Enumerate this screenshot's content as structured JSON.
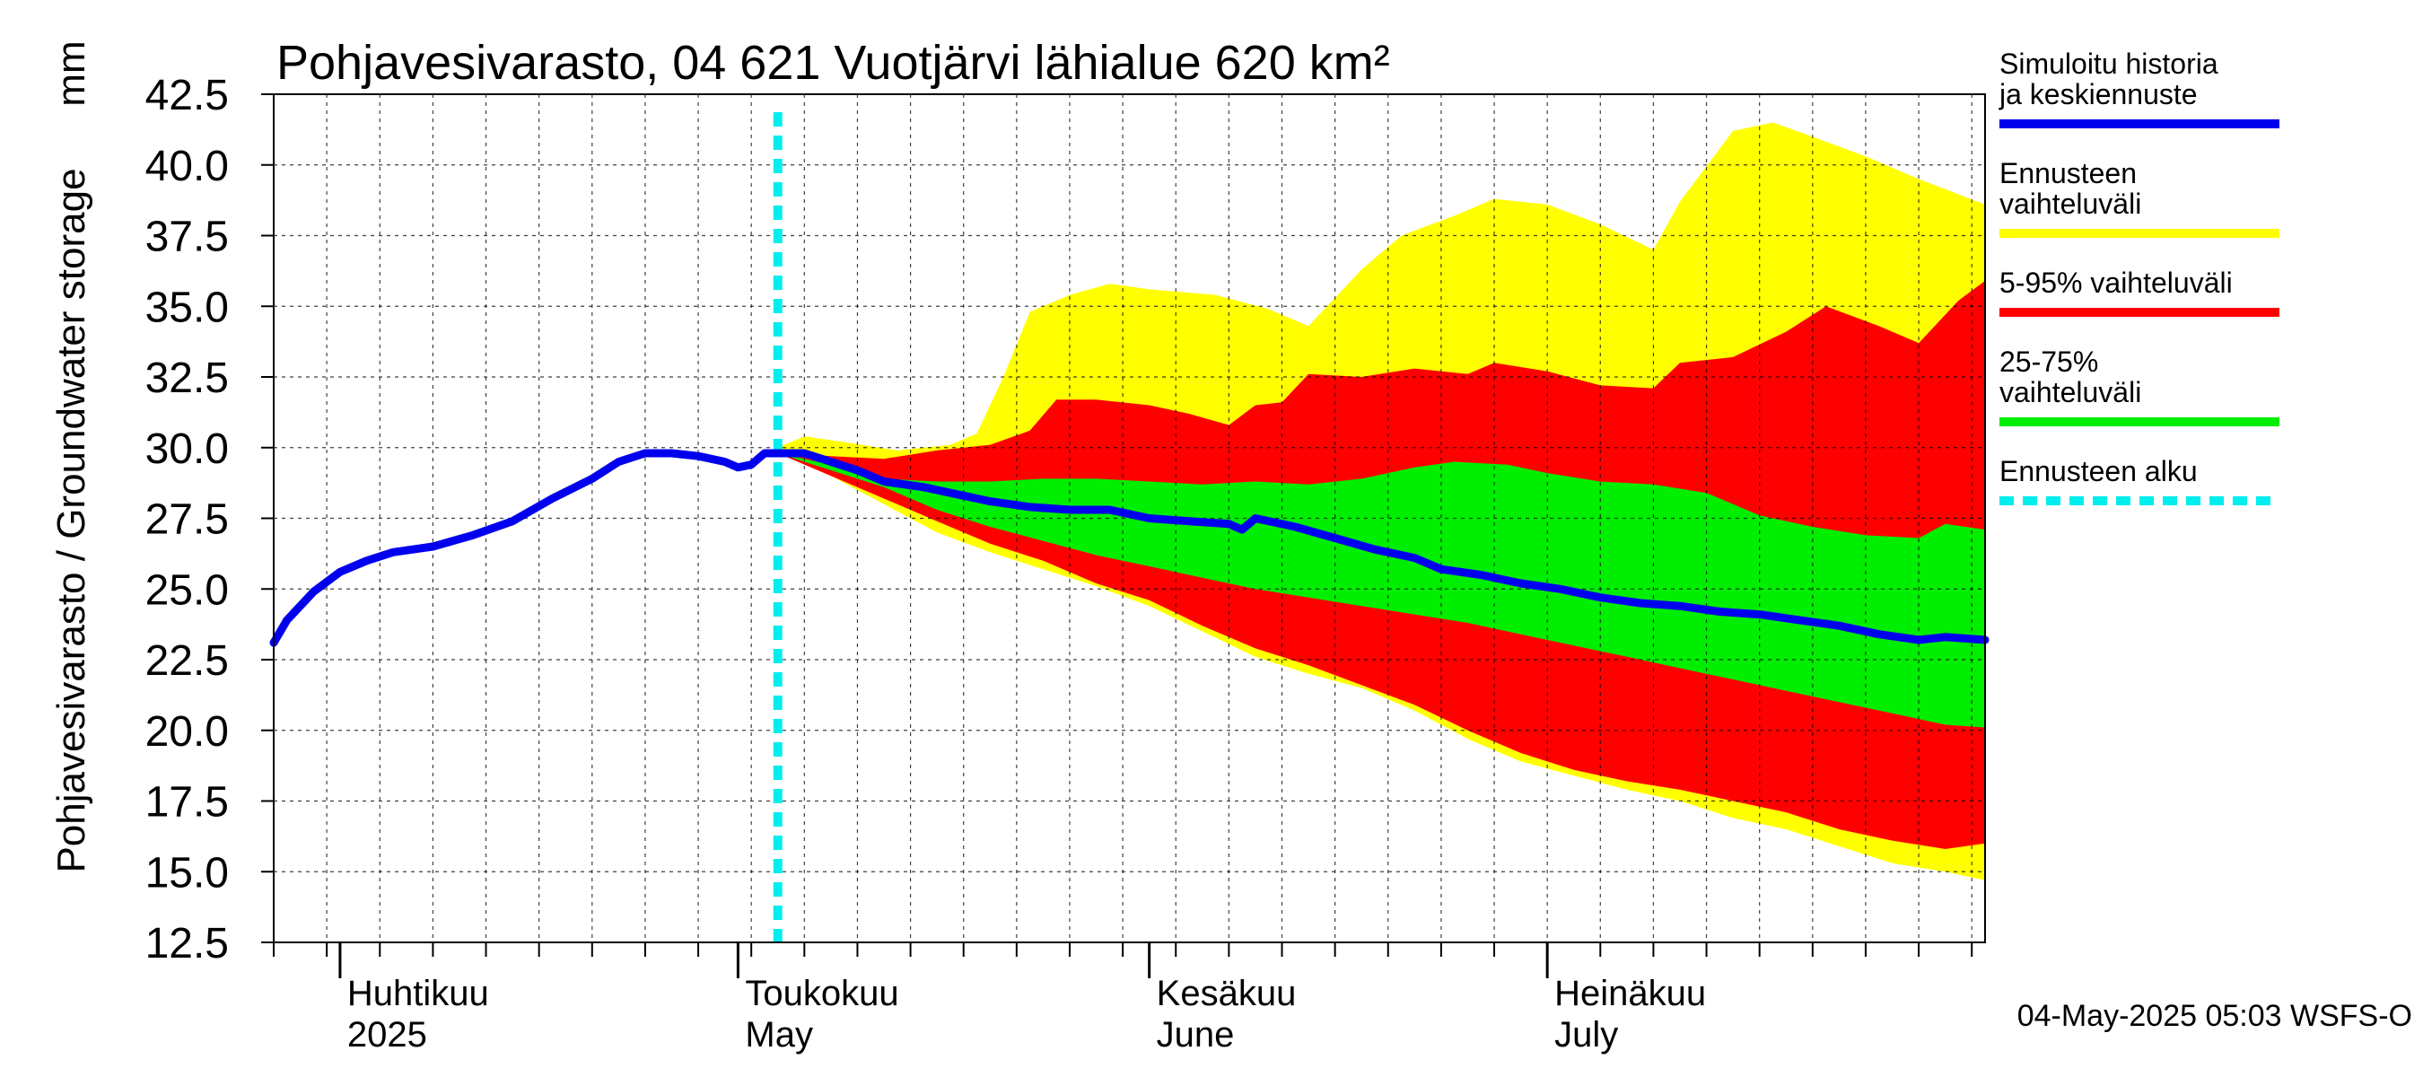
{
  "chart_data": {
    "type": "area",
    "title": "Pohjavesivarasto, 04 621 Vuotjärvi lähialue 620 km²",
    "ylabel": "Pohjavesivarasto / Groundwater storage",
    "yunit": "mm",
    "ylim": [
      12.5,
      42.5
    ],
    "yticks": [
      "12.5",
      "15.0",
      "17.5",
      "20.0",
      "22.5",
      "25.0",
      "27.5",
      "30.0",
      "32.5",
      "35.0",
      "37.5",
      "40.0",
      "42.5"
    ],
    "xlim": [
      "2025-03-27",
      "2025-08-03"
    ],
    "grid": true,
    "month_labels": [
      {
        "date": "2025-04-01",
        "fi": "Huhtikuu",
        "en": "2025"
      },
      {
        "date": "2025-05-01",
        "fi": "Toukokuu",
        "en": "May"
      },
      {
        "date": "2025-06-01",
        "fi": "Kesäkuu",
        "en": "June"
      },
      {
        "date": "2025-07-01",
        "fi": "Heinäkuu",
        "en": "July"
      }
    ],
    "forecast_start": "2025-05-04",
    "legend_position": "right",
    "legend": [
      {
        "label": "Simuloitu historia ja keskiennuste",
        "color": "#0000ee",
        "style": "solid"
      },
      {
        "label": "Ennusteen vaihteluväli",
        "color": "#ffff00",
        "style": "solid"
      },
      {
        "label": "5-95% vaihteluväli",
        "color": "#ff0000",
        "style": "solid"
      },
      {
        "label": "25-75% vaihteluväli",
        "color": "#00ee00",
        "style": "solid"
      },
      {
        "label": "Ennusteen alku",
        "color": "#00eeee",
        "style": "dashed"
      }
    ],
    "footer": "04-May-2025 05:03 WSFS-O",
    "series": [
      {
        "name": "Simuloitu historia ja keskiennuste",
        "points": [
          [
            "2025-03-27",
            23.1
          ],
          [
            "2025-03-28",
            23.9
          ],
          [
            "2025-03-30",
            24.9
          ],
          [
            "2025-04-01",
            25.6
          ],
          [
            "2025-04-03",
            26.0
          ],
          [
            "2025-04-05",
            26.3
          ],
          [
            "2025-04-08",
            26.5
          ],
          [
            "2025-04-11",
            26.9
          ],
          [
            "2025-04-14",
            27.4
          ],
          [
            "2025-04-17",
            28.2
          ],
          [
            "2025-04-20",
            28.9
          ],
          [
            "2025-04-22",
            29.5
          ],
          [
            "2025-04-24",
            29.8
          ],
          [
            "2025-04-26",
            29.8
          ],
          [
            "2025-04-28",
            29.7
          ],
          [
            "2025-04-30",
            29.5
          ],
          [
            "2025-05-01",
            29.3
          ],
          [
            "2025-05-02",
            29.4
          ],
          [
            "2025-05-03",
            29.8
          ],
          [
            "2025-05-04",
            29.8
          ],
          [
            "2025-05-06",
            29.8
          ],
          [
            "2025-05-08",
            29.5
          ],
          [
            "2025-05-10",
            29.2
          ],
          [
            "2025-05-12",
            28.8
          ],
          [
            "2025-05-15",
            28.6
          ],
          [
            "2025-05-18",
            28.3
          ],
          [
            "2025-05-20",
            28.1
          ],
          [
            "2025-05-23",
            27.9
          ],
          [
            "2025-05-26",
            27.8
          ],
          [
            "2025-05-29",
            27.8
          ],
          [
            "2025-06-01",
            27.5
          ],
          [
            "2025-06-04",
            27.4
          ],
          [
            "2025-06-07",
            27.3
          ],
          [
            "2025-06-08",
            27.1
          ],
          [
            "2025-06-09",
            27.5
          ],
          [
            "2025-06-12",
            27.2
          ],
          [
            "2025-06-15",
            26.8
          ],
          [
            "2025-06-18",
            26.4
          ],
          [
            "2025-06-21",
            26.1
          ],
          [
            "2025-06-23",
            25.7
          ],
          [
            "2025-06-26",
            25.5
          ],
          [
            "2025-06-29",
            25.2
          ],
          [
            "2025-07-02",
            25.0
          ],
          [
            "2025-07-05",
            24.7
          ],
          [
            "2025-07-08",
            24.5
          ],
          [
            "2025-07-11",
            24.4
          ],
          [
            "2025-07-14",
            24.2
          ],
          [
            "2025-07-17",
            24.1
          ],
          [
            "2025-07-20",
            23.9
          ],
          [
            "2025-07-23",
            23.7
          ],
          [
            "2025-07-26",
            23.4
          ],
          [
            "2025-07-29",
            23.2
          ],
          [
            "2025-07-31",
            23.3
          ],
          [
            "2025-08-03",
            23.2
          ]
        ]
      },
      {
        "name": "Ennusteen vaihteluväli",
        "points_upper": [
          [
            "2025-05-04",
            30.0
          ],
          [
            "2025-05-06",
            30.4
          ],
          [
            "2025-05-09",
            30.2
          ],
          [
            "2025-05-13",
            29.9
          ],
          [
            "2025-05-17",
            30.1
          ],
          [
            "2025-05-19",
            30.5
          ],
          [
            "2025-05-21",
            32.5
          ],
          [
            "2025-05-23",
            34.8
          ],
          [
            "2025-05-26",
            35.4
          ],
          [
            "2025-05-29",
            35.8
          ],
          [
            "2025-06-01",
            35.6
          ],
          [
            "2025-06-06",
            35.4
          ],
          [
            "2025-06-10",
            34.9
          ],
          [
            "2025-06-13",
            34.3
          ],
          [
            "2025-06-17",
            36.3
          ],
          [
            "2025-06-20",
            37.5
          ],
          [
            "2025-06-24",
            38.2
          ],
          [
            "2025-06-27",
            38.8
          ],
          [
            "2025-07-01",
            38.6
          ],
          [
            "2025-07-05",
            37.9
          ],
          [
            "2025-07-09",
            37.0
          ],
          [
            "2025-07-11",
            38.7
          ],
          [
            "2025-07-15",
            41.2
          ],
          [
            "2025-07-18",
            41.5
          ],
          [
            "2025-07-21",
            41.0
          ],
          [
            "2025-07-25",
            40.3
          ],
          [
            "2025-07-29",
            39.5
          ],
          [
            "2025-08-03",
            38.6
          ]
        ],
        "points_lower": [
          [
            "2025-05-04",
            29.8
          ],
          [
            "2025-05-08",
            29.0
          ],
          [
            "2025-05-12",
            28.0
          ],
          [
            "2025-05-16",
            27.0
          ],
          [
            "2025-05-20",
            26.3
          ],
          [
            "2025-05-24",
            25.7
          ],
          [
            "2025-05-28",
            25.1
          ],
          [
            "2025-06-01",
            24.4
          ],
          [
            "2025-06-05",
            23.5
          ],
          [
            "2025-06-09",
            22.6
          ],
          [
            "2025-06-13",
            22.0
          ],
          [
            "2025-06-17",
            21.5
          ],
          [
            "2025-06-21",
            20.7
          ],
          [
            "2025-06-25",
            19.7
          ],
          [
            "2025-06-29",
            18.9
          ],
          [
            "2025-07-03",
            18.4
          ],
          [
            "2025-07-07",
            17.9
          ],
          [
            "2025-07-11",
            17.5
          ],
          [
            "2025-07-15",
            16.9
          ],
          [
            "2025-07-19",
            16.5
          ],
          [
            "2025-07-23",
            15.9
          ],
          [
            "2025-07-27",
            15.3
          ],
          [
            "2025-07-31",
            15.0
          ],
          [
            "2025-08-03",
            14.7
          ]
        ]
      },
      {
        "name": "5-95% vaihteluväli",
        "points_upper": [
          [
            "2025-05-04",
            29.8
          ],
          [
            "2025-05-08",
            29.7
          ],
          [
            "2025-05-12",
            29.6
          ],
          [
            "2025-05-16",
            29.9
          ],
          [
            "2025-05-20",
            30.1
          ],
          [
            "2025-05-23",
            30.6
          ],
          [
            "2025-05-25",
            31.7
          ],
          [
            "2025-05-28",
            31.7
          ],
          [
            "2025-06-01",
            31.5
          ],
          [
            "2025-06-04",
            31.2
          ],
          [
            "2025-06-07",
            30.8
          ],
          [
            "2025-06-09",
            31.5
          ],
          [
            "2025-06-11",
            31.6
          ],
          [
            "2025-06-13",
            32.6
          ],
          [
            "2025-06-17",
            32.5
          ],
          [
            "2025-06-21",
            32.8
          ],
          [
            "2025-06-25",
            32.6
          ],
          [
            "2025-06-27",
            33.0
          ],
          [
            "2025-07-01",
            32.7
          ],
          [
            "2025-07-05",
            32.2
          ],
          [
            "2025-07-09",
            32.1
          ],
          [
            "2025-07-11",
            33.0
          ],
          [
            "2025-07-15",
            33.2
          ],
          [
            "2025-07-19",
            34.1
          ],
          [
            "2025-07-22",
            35.0
          ],
          [
            "2025-07-26",
            34.3
          ],
          [
            "2025-07-29",
            33.7
          ],
          [
            "2025-08-01",
            35.2
          ],
          [
            "2025-08-03",
            35.9
          ]
        ],
        "points_lower": [
          [
            "2025-05-04",
            29.8
          ],
          [
            "2025-05-08",
            29.0
          ],
          [
            "2025-05-12",
            28.2
          ],
          [
            "2025-05-16",
            27.4
          ],
          [
            "2025-05-20",
            26.6
          ],
          [
            "2025-05-24",
            26.0
          ],
          [
            "2025-05-28",
            25.2
          ],
          [
            "2025-06-01",
            24.6
          ],
          [
            "2025-06-05",
            23.7
          ],
          [
            "2025-06-09",
            22.9
          ],
          [
            "2025-06-13",
            22.3
          ],
          [
            "2025-06-17",
            21.6
          ],
          [
            "2025-06-21",
            20.9
          ],
          [
            "2025-06-25",
            20.0
          ],
          [
            "2025-06-29",
            19.2
          ],
          [
            "2025-07-03",
            18.6
          ],
          [
            "2025-07-07",
            18.2
          ],
          [
            "2025-07-11",
            17.9
          ],
          [
            "2025-07-15",
            17.5
          ],
          [
            "2025-07-19",
            17.1
          ],
          [
            "2025-07-23",
            16.5
          ],
          [
            "2025-07-27",
            16.1
          ],
          [
            "2025-07-31",
            15.8
          ],
          [
            "2025-08-03",
            16.0
          ]
        ]
      },
      {
        "name": "25-75% vaihteluväli",
        "points_upper": [
          [
            "2025-05-04",
            29.8
          ],
          [
            "2025-05-08",
            29.4
          ],
          [
            "2025-05-12",
            28.9
          ],
          [
            "2025-05-16",
            28.8
          ],
          [
            "2025-05-20",
            28.8
          ],
          [
            "2025-05-24",
            28.9
          ],
          [
            "2025-05-28",
            28.9
          ],
          [
            "2025-06-01",
            28.8
          ],
          [
            "2025-06-05",
            28.7
          ],
          [
            "2025-06-09",
            28.8
          ],
          [
            "2025-06-13",
            28.7
          ],
          [
            "2025-06-17",
            28.9
          ],
          [
            "2025-06-21",
            29.3
          ],
          [
            "2025-06-24",
            29.5
          ],
          [
            "2025-06-28",
            29.4
          ],
          [
            "2025-07-01",
            29.1
          ],
          [
            "2025-07-05",
            28.8
          ],
          [
            "2025-07-09",
            28.7
          ],
          [
            "2025-07-13",
            28.4
          ],
          [
            "2025-07-17",
            27.6
          ],
          [
            "2025-07-21",
            27.2
          ],
          [
            "2025-07-25",
            26.9
          ],
          [
            "2025-07-29",
            26.8
          ],
          [
            "2025-07-31",
            27.3
          ],
          [
            "2025-08-03",
            27.1
          ]
        ],
        "points_lower": [
          [
            "2025-05-04",
            29.8
          ],
          [
            "2025-05-08",
            29.2
          ],
          [
            "2025-05-12",
            28.6
          ],
          [
            "2025-05-16",
            27.8
          ],
          [
            "2025-05-20",
            27.2
          ],
          [
            "2025-05-24",
            26.7
          ],
          [
            "2025-05-28",
            26.2
          ],
          [
            "2025-06-01",
            25.8
          ],
          [
            "2025-06-05",
            25.4
          ],
          [
            "2025-06-09",
            25.0
          ],
          [
            "2025-06-13",
            24.7
          ],
          [
            "2025-06-17",
            24.4
          ],
          [
            "2025-06-21",
            24.1
          ],
          [
            "2025-06-25",
            23.8
          ],
          [
            "2025-06-29",
            23.4
          ],
          [
            "2025-07-03",
            23.0
          ],
          [
            "2025-07-07",
            22.6
          ],
          [
            "2025-07-11",
            22.2
          ],
          [
            "2025-07-15",
            21.8
          ],
          [
            "2025-07-19",
            21.4
          ],
          [
            "2025-07-23",
            21.0
          ],
          [
            "2025-07-27",
            20.6
          ],
          [
            "2025-07-31",
            20.2
          ],
          [
            "2025-08-03",
            20.1
          ]
        ]
      }
    ]
  }
}
